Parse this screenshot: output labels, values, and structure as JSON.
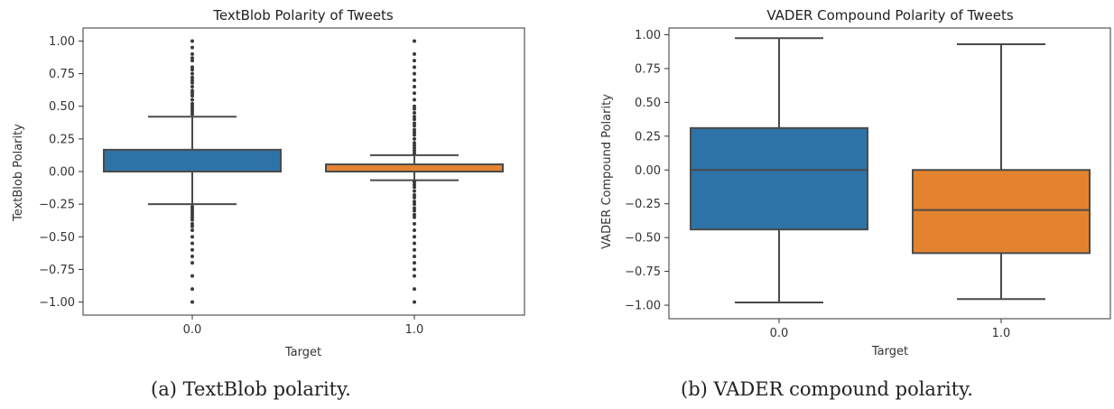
{
  "chart_data": [
    {
      "type": "box",
      "title": "TextBlob Polarity of Tweets",
      "xlabel": "Target",
      "ylabel": "TextBlob Polarity",
      "caption": "(a)  TextBlob polarity.",
      "categories": [
        "0.0",
        "1.0"
      ],
      "ylim": [
        -1.1,
        1.1
      ],
      "yticks": [
        "1.00",
        "0.75",
        "0.50",
        "0.25",
        "0.00",
        "−0.25",
        "−0.50",
        "−0.75",
        "−1.00"
      ],
      "ytick_values": [
        1.0,
        0.75,
        0.5,
        0.25,
        0.0,
        -0.25,
        -0.5,
        -0.75,
        -1.0
      ],
      "grid": false,
      "boxes": [
        {
          "name": "0.0",
          "color": "#2e73a8",
          "whisker_low": -0.25,
          "q1": 0.0,
          "median": 0.0,
          "q3": 0.167,
          "whisker_high": 0.42,
          "outliers": [
            1.0,
            0.95,
            0.9,
            0.87,
            0.85,
            0.8,
            0.78,
            0.75,
            0.72,
            0.7,
            0.68,
            0.65,
            0.62,
            0.6,
            0.58,
            0.55,
            0.52,
            0.5,
            0.48,
            0.46,
            0.44,
            -0.27,
            -0.29,
            -0.31,
            -0.33,
            -0.35,
            -0.37,
            -0.4,
            -0.42,
            -0.45,
            -0.5,
            -0.55,
            -0.6,
            -0.65,
            -0.7,
            -0.8,
            -0.9,
            -1.0
          ]
        },
        {
          "name": "1.0",
          "color": "#e38330",
          "whisker_low": -0.067,
          "q1": 0.0,
          "median": 0.0,
          "q3": 0.055,
          "whisker_high": 0.125,
          "outliers": [
            1.0,
            0.9,
            0.85,
            0.8,
            0.75,
            0.7,
            0.65,
            0.6,
            0.55,
            0.5,
            0.48,
            0.45,
            0.42,
            0.4,
            0.37,
            0.35,
            0.32,
            0.3,
            0.28,
            0.25,
            0.22,
            0.2,
            0.18,
            0.16,
            0.14,
            -0.08,
            -0.1,
            -0.12,
            -0.15,
            -0.18,
            -0.2,
            -0.23,
            -0.25,
            -0.28,
            -0.3,
            -0.33,
            -0.35,
            -0.4,
            -0.45,
            -0.5,
            -0.55,
            -0.6,
            -0.65,
            -0.7,
            -0.75,
            -0.8,
            -0.9,
            -1.0
          ]
        }
      ]
    },
    {
      "type": "box",
      "title": "VADER Compound Polarity of Tweets",
      "xlabel": "Target",
      "ylabel": "VADER Compound Polarity",
      "caption": "(b)  VADER compound polarity.",
      "categories": [
        "0.0",
        "1.0"
      ],
      "ylim": [
        -1.1,
        1.05
      ],
      "yticks": [
        "1.00",
        "0.75",
        "0.50",
        "0.25",
        "0.00",
        "−0.25",
        "−0.50",
        "−0.75",
        "−1.00"
      ],
      "ytick_values": [
        1.0,
        0.75,
        0.5,
        0.25,
        0.0,
        -0.25,
        -0.5,
        -0.75,
        -1.0
      ],
      "grid": false,
      "boxes": [
        {
          "name": "0.0",
          "color": "#2e73a8",
          "whisker_low": -0.98,
          "q1": -0.44,
          "median": 0.0,
          "q3": 0.31,
          "whisker_high": 0.975,
          "outliers": []
        },
        {
          "name": "1.0",
          "color": "#e38330",
          "whisker_low": -0.955,
          "q1": -0.615,
          "median": -0.296,
          "q3": 0.0,
          "whisker_high": 0.93,
          "outliers": []
        }
      ]
    }
  ]
}
